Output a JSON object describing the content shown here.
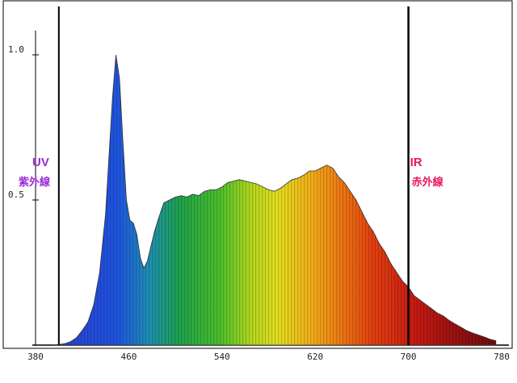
{
  "chart_data": {
    "type": "area",
    "title": "",
    "xlabel": "",
    "ylabel": "",
    "xlim": [
      380,
      780
    ],
    "ylim": [
      0,
      1.0
    ],
    "x_ticks": [
      "380",
      "460",
      "540",
      "620",
      "700",
      "780"
    ],
    "y_ticks": [
      "0.5",
      "1.0"
    ],
    "grid": false,
    "series": [
      {
        "x": [
          395,
          400,
          405,
          410,
          415,
          420,
          425,
          430,
          435,
          440,
          443,
          446,
          449,
          452,
          455,
          458,
          461,
          464,
          467,
          470,
          473,
          476,
          479,
          482,
          485,
          490,
          495,
          500,
          505,
          510,
          515,
          520,
          525,
          530,
          535,
          540,
          545,
          550,
          555,
          560,
          565,
          570,
          575,
          580,
          585,
          590,
          595,
          600,
          605,
          610,
          615,
          620,
          625,
          630,
          635,
          640,
          645,
          650,
          655,
          660,
          665,
          670,
          675,
          680,
          685,
          690,
          695,
          700,
          705,
          710,
          715,
          720,
          725,
          730,
          735,
          740,
          745,
          750,
          755,
          760,
          765,
          770,
          775
        ],
        "values": [
          0.0,
          0.002,
          0.005,
          0.012,
          0.025,
          0.05,
          0.08,
          0.14,
          0.25,
          0.45,
          0.65,
          0.85,
          1.0,
          0.92,
          0.7,
          0.5,
          0.43,
          0.42,
          0.38,
          0.3,
          0.265,
          0.29,
          0.34,
          0.39,
          0.43,
          0.49,
          0.5,
          0.51,
          0.515,
          0.51,
          0.52,
          0.515,
          0.53,
          0.535,
          0.535,
          0.545,
          0.56,
          0.565,
          0.57,
          0.565,
          0.56,
          0.555,
          0.545,
          0.535,
          0.53,
          0.54,
          0.555,
          0.57,
          0.575,
          0.585,
          0.6,
          0.6,
          0.61,
          0.62,
          0.61,
          0.58,
          0.56,
          0.53,
          0.5,
          0.46,
          0.42,
          0.39,
          0.35,
          0.32,
          0.28,
          0.25,
          0.22,
          0.2,
          0.17,
          0.155,
          0.14,
          0.125,
          0.11,
          0.1,
          0.085,
          0.073,
          0.062,
          0.05,
          0.042,
          0.035,
          0.028,
          0.02,
          0.015
        ]
      }
    ],
    "markers": [
      {
        "x": 400,
        "label_line1": "UV",
        "label_line2": "紫外線",
        "color": "#9a2bd8"
      },
      {
        "x": 700,
        "label_line1": "IR",
        "label_line2": "赤外線",
        "color": "#e8195a"
      }
    ]
  }
}
